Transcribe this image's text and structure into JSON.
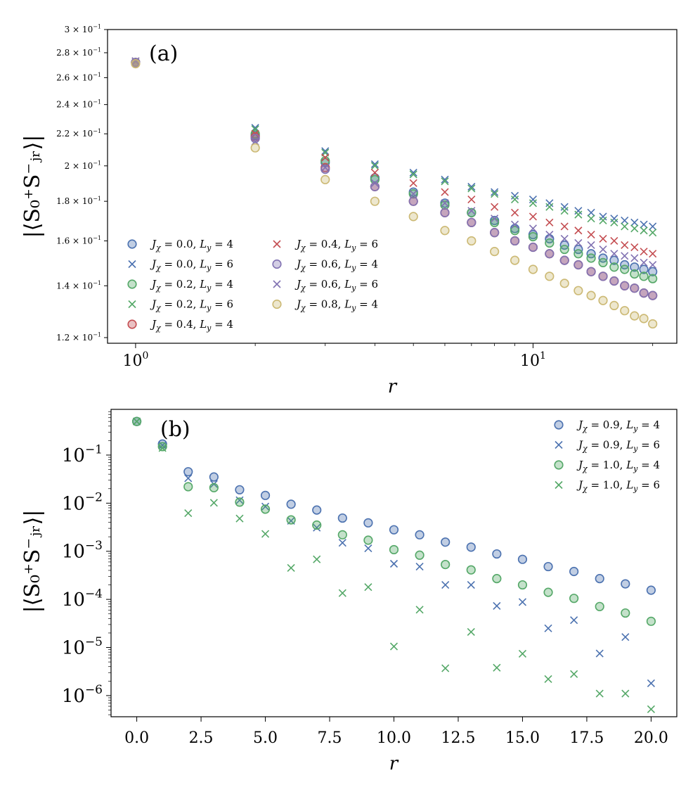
{
  "colors": {
    "blue": "#4C72B0",
    "green": "#55A868",
    "red": "#C44E52",
    "purple": "#8172B2",
    "tan": "#CCB974"
  },
  "chart_data": [
    {
      "type": "scatter",
      "panel_label": "(a)",
      "xscale": "log",
      "yscale": "log",
      "xlim": [
        0.85,
        23.0
      ],
      "ylim": [
        0.118,
        0.3
      ],
      "xlabel": "r",
      "ylabel": "|⟨S₀⁺S⁻ⱼᵣ⟩|",
      "x_ticks": [
        {
          "value": 1,
          "label": "10",
          "exp": "0"
        },
        {
          "value": 10,
          "label": "10",
          "exp": "1"
        }
      ],
      "y_ticks": [
        {
          "value": 0.12,
          "label": "1.2 × 10",
          "exp": "−1"
        },
        {
          "value": 0.14,
          "label": "1.4 × 10",
          "exp": "−1"
        },
        {
          "value": 0.16,
          "label": "1.6 × 10",
          "exp": "−1"
        },
        {
          "value": 0.18,
          "label": "1.8 × 10",
          "exp": "−1"
        },
        {
          "value": 0.2,
          "label": "2 × 10",
          "exp": "−1"
        },
        {
          "value": 0.22,
          "label": "2.2 × 10",
          "exp": "−1"
        },
        {
          "value": 0.24,
          "label": "2.4 × 10",
          "exp": "−1"
        },
        {
          "value": 0.26,
          "label": "2.6 × 10",
          "exp": "−1"
        },
        {
          "value": 0.28,
          "label": "2.8 × 10",
          "exp": "−1"
        },
        {
          "value": 0.3,
          "label": "3 × 10",
          "exp": "−1"
        }
      ],
      "legend_position": "lower-left",
      "x": [
        1,
        2,
        3,
        4,
        5,
        6,
        7,
        8,
        9,
        10,
        11,
        12,
        13,
        14,
        15,
        16,
        17,
        18,
        19,
        20
      ],
      "series": [
        {
          "name": "J_χ = 0.0, L_y = 4",
          "marker": "circle",
          "color": "blue",
          "values": [
            0.272,
            0.219,
            0.202,
            0.193,
            0.185,
            0.179,
            0.174,
            0.17,
            0.166,
            0.163,
            0.161,
            0.158,
            0.156,
            0.154,
            0.152,
            0.151,
            0.149,
            0.148,
            0.147,
            0.146
          ]
        },
        {
          "name": "J_χ = 0.0, L_y = 6",
          "marker": "x",
          "color": "blue",
          "values": [
            0.273,
            0.224,
            0.209,
            0.201,
            0.196,
            0.192,
            0.188,
            0.185,
            0.183,
            0.181,
            0.179,
            0.177,
            0.175,
            0.174,
            0.172,
            0.171,
            0.17,
            0.169,
            0.168,
            0.167
          ]
        },
        {
          "name": "J_χ = 0.2, L_y = 4",
          "marker": "circle",
          "color": "green",
          "values": [
            0.272,
            0.22,
            0.203,
            0.192,
            0.184,
            0.178,
            0.174,
            0.169,
            0.165,
            0.162,
            0.159,
            0.156,
            0.154,
            0.152,
            0.15,
            0.148,
            0.147,
            0.145,
            0.144,
            0.143
          ]
        },
        {
          "name": "J_χ = 0.2, L_y = 6",
          "marker": "x",
          "color": "green",
          "values": [
            0.273,
            0.223,
            0.208,
            0.2,
            0.195,
            0.191,
            0.187,
            0.184,
            0.181,
            0.179,
            0.177,
            0.175,
            0.173,
            0.171,
            0.17,
            0.169,
            0.167,
            0.166,
            0.165,
            0.164
          ]
        },
        {
          "name": "J_χ = 0.4, L_y = 4",
          "marker": "circle",
          "color": "red",
          "values": [
            0.272,
            0.218,
            0.199,
            0.188,
            0.18,
            0.174,
            0.169,
            0.164,
            0.16,
            0.157,
            0.154,
            0.151,
            0.149,
            0.146,
            0.144,
            0.142,
            0.14,
            0.139,
            0.137,
            0.136
          ]
        },
        {
          "name": "J_χ = 0.4, L_y = 6",
          "marker": "x",
          "color": "red",
          "values": [
            0.273,
            0.22,
            0.205,
            0.196,
            0.19,
            0.185,
            0.181,
            0.177,
            0.174,
            0.172,
            0.169,
            0.167,
            0.165,
            0.163,
            0.161,
            0.16,
            0.158,
            0.157,
            0.155,
            0.154
          ]
        },
        {
          "name": "J_χ = 0.6, L_y = 4",
          "marker": "circle",
          "color": "purple",
          "values": [
            0.272,
            0.217,
            0.198,
            0.188,
            0.18,
            0.174,
            0.169,
            0.164,
            0.16,
            0.157,
            0.154,
            0.151,
            0.149,
            0.146,
            0.144,
            0.142,
            0.14,
            0.139,
            0.137,
            0.136
          ]
        },
        {
          "name": "J_χ = 0.6, L_y = 6",
          "marker": "x",
          "color": "purple",
          "values": [
            0.273,
            0.215,
            0.199,
            0.19,
            0.184,
            0.179,
            0.175,
            0.171,
            0.168,
            0.166,
            0.163,
            0.161,
            0.159,
            0.158,
            0.156,
            0.154,
            0.153,
            0.152,
            0.15,
            0.149
          ]
        },
        {
          "name": "J_χ = 0.8, L_y = 4",
          "marker": "circle",
          "color": "tan",
          "values": [
            0.271,
            0.211,
            0.192,
            0.18,
            0.172,
            0.165,
            0.16,
            0.155,
            0.151,
            0.147,
            0.144,
            0.141,
            0.138,
            0.136,
            0.134,
            0.132,
            0.13,
            0.128,
            0.127,
            0.125
          ]
        }
      ]
    },
    {
      "type": "scatter",
      "panel_label": "(b)",
      "xscale": "linear",
      "yscale": "log",
      "xlim": [
        -1.0,
        21.0
      ],
      "ylim_log10": [
        -6.44,
        -0.05
      ],
      "xlabel": "r",
      "ylabel": "|⟨S₀⁺S⁻ⱼᵣ⟩|",
      "x_ticks": [
        {
          "value": 0,
          "label": "0.0"
        },
        {
          "value": 2.5,
          "label": "2.5"
        },
        {
          "value": 5,
          "label": "5.0"
        },
        {
          "value": 7.5,
          "label": "7.5"
        },
        {
          "value": 10,
          "label": "10.0"
        },
        {
          "value": 12.5,
          "label": "12.5"
        },
        {
          "value": 15,
          "label": "15.0"
        },
        {
          "value": 17.5,
          "label": "17.5"
        },
        {
          "value": 20,
          "label": "20.0"
        }
      ],
      "y_ticks": [
        {
          "value": 0.1,
          "label": "10",
          "exp": "−1"
        },
        {
          "value": 0.01,
          "label": "10",
          "exp": "−2"
        },
        {
          "value": 0.001,
          "label": "10",
          "exp": "−3"
        },
        {
          "value": 0.0001,
          "label": "10",
          "exp": "−4"
        },
        {
          "value": 1e-05,
          "label": "10",
          "exp": "−5"
        },
        {
          "value": 1e-06,
          "label": "10",
          "exp": "−6"
        }
      ],
      "legend_position": "top-right",
      "x": [
        0,
        1,
        2,
        3,
        4,
        5,
        6,
        7,
        8,
        9,
        10,
        11,
        12,
        13,
        14,
        15,
        16,
        17,
        18,
        19,
        20
      ],
      "series": [
        {
          "name": "J_χ = 0.9, L_y = 4",
          "marker": "circle",
          "color": "blue",
          "values": [
            0.5,
            0.17,
            0.045,
            0.035,
            0.019,
            0.0145,
            0.0095,
            0.0072,
            0.0049,
            0.0039,
            0.0028,
            0.0022,
            0.00155,
            0.00122,
            0.00088,
            0.00068,
            0.00048,
            0.00038,
            0.00027,
            0.00021,
            0.000155
          ]
        },
        {
          "name": "J_χ = 0.9, L_y = 6",
          "marker": "x",
          "color": "blue",
          "values": [
            0.5,
            0.16,
            0.033,
            0.025,
            0.0115,
            0.0085,
            0.0043,
            0.0031,
            0.0015,
            0.00115,
            0.00055,
            0.00048,
            0.0002,
            0.0002,
            7.3e-05,
            8.8e-05,
            2.5e-05,
            3.7e-05,
            7.5e-06,
            1.65e-05,
            1.8e-06
          ]
        },
        {
          "name": "J_χ = 1.0, L_y = 4",
          "marker": "circle",
          "color": "green",
          "values": [
            0.5,
            0.15,
            0.022,
            0.021,
            0.0105,
            0.0075,
            0.0045,
            0.0035,
            0.0022,
            0.0017,
            0.00108,
            0.00083,
            0.00053,
            0.00041,
            0.00027,
            0.0002,
            0.00014,
            0.000105,
            7.1e-05,
            5.2e-05,
            3.5e-05
          ]
        },
        {
          "name": "J_χ = 1.0, L_y = 6",
          "marker": "x",
          "color": "green",
          "values": [
            0.5,
            0.14,
            0.0062,
            0.0102,
            0.0048,
            0.0023,
            0.00045,
            0.00068,
            0.000135,
            0.00018,
            1.05e-05,
            6.1e-05,
            3.7e-06,
            2.1e-05,
            3.8e-06,
            7.4e-06,
            2.2e-06,
            2.8e-06,
            1.1e-06,
            1.1e-06,
            5.2e-07
          ]
        }
      ]
    }
  ]
}
